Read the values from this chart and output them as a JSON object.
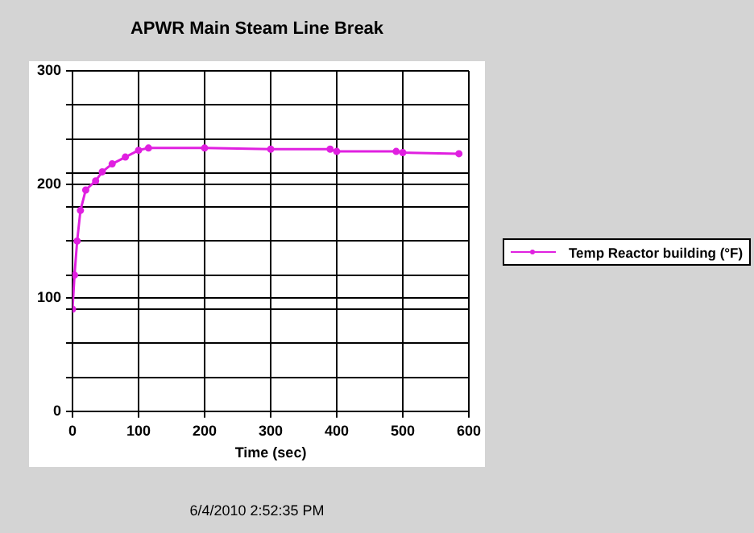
{
  "chart_data": {
    "type": "line",
    "title": "APWR Main Steam Line Break",
    "xlabel": "Time (sec)",
    "annotations": [
      "6/4/2010 2:52:35 PM"
    ],
    "series": [
      {
        "name": "Temp Reactor building (°F)",
        "color": "#e020e0",
        "x": [
          0,
          3,
          7,
          12,
          20,
          35,
          45,
          60,
          80,
          100,
          115,
          200,
          300,
          390,
          400,
          490,
          500,
          585
        ],
        "values": [
          90,
          120,
          150,
          177,
          195,
          203,
          211,
          218,
          224,
          230,
          232,
          232,
          231,
          231,
          229,
          229,
          228,
          227
        ]
      }
    ],
    "xlim": [
      0,
      600
    ],
    "xticks": [
      0,
      100,
      200,
      300,
      400,
      500,
      600
    ],
    "ylim": [
      0,
      300
    ],
    "yticks": [
      0,
      {
        "value": 30,
        "label": null
      },
      {
        "value": 60,
        "label": null
      },
      {
        "value": 90,
        "label": null
      },
      100,
      {
        "value": 120,
        "label": null
      },
      {
        "value": 150,
        "label": null
      },
      {
        "value": 180,
        "label": null
      },
      200,
      {
        "value": 210,
        "label": null
      },
      {
        "value": 240,
        "label": null
      },
      {
        "value": 270,
        "label": null
      },
      300
    ],
    "grid": true,
    "legend": "right",
    "marker": "circle",
    "line_style": "solid"
  }
}
